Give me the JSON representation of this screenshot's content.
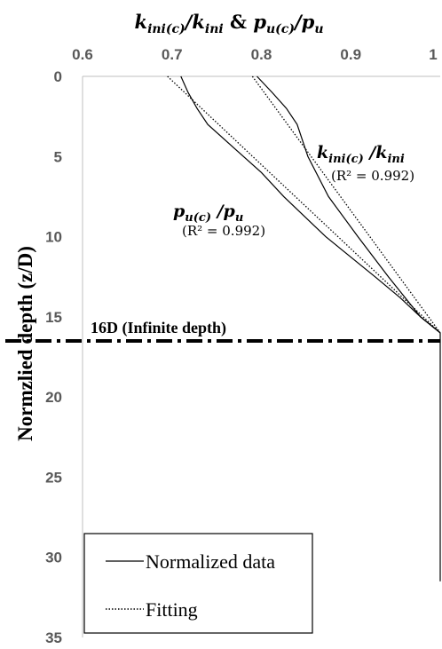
{
  "chart_data": {
    "type": "line",
    "title": "kini(c)/kini & pu(c)/pu",
    "ylabel": "Normzlied depth (z/D)",
    "xlim": [
      0.6,
      1.0
    ],
    "ylim": [
      0,
      35
    ],
    "x_axis_position": "top",
    "y_axis_inverted": true,
    "grid": false,
    "x_ticks": [
      "0.6",
      "0.7",
      "0.8",
      "0.9",
      "1"
    ],
    "y_ticks": [
      "0",
      "5",
      "10",
      "15",
      "20",
      "25",
      "30",
      "35"
    ],
    "series": [
      {
        "name": "Normalized data",
        "group": "kini(c)/kini",
        "style": "solid",
        "points": [
          [
            0.795,
            0
          ],
          [
            0.812,
            1
          ],
          [
            0.828,
            2
          ],
          [
            0.84,
            3
          ],
          [
            0.852,
            5
          ],
          [
            0.875,
            7.5
          ],
          [
            0.908,
            10
          ],
          [
            0.942,
            12.5
          ],
          [
            0.978,
            15
          ],
          [
            1.0,
            16
          ]
        ]
      },
      {
        "name": "Fitting",
        "group": "kini(c)/kini",
        "style": "dotted",
        "points": [
          [
            0.79,
            0
          ],
          [
            0.832,
            3.2
          ],
          [
            0.874,
            6.4
          ],
          [
            0.916,
            9.6
          ],
          [
            0.958,
            12.8
          ],
          [
            1.0,
            16
          ]
        ]
      },
      {
        "name": "Normalized data",
        "group": "pu(c)/pu",
        "style": "solid",
        "points": [
          [
            0.71,
            0
          ],
          [
            0.718,
            1
          ],
          [
            0.728,
            2
          ],
          [
            0.74,
            3
          ],
          [
            0.77,
            4.5
          ],
          [
            0.8,
            6
          ],
          [
            0.825,
            7.5
          ],
          [
            0.872,
            10
          ],
          [
            0.927,
            12.5
          ],
          [
            0.955,
            13.8
          ],
          [
            0.978,
            15
          ],
          [
            1.0,
            16
          ]
        ]
      },
      {
        "name": "Fitting",
        "group": "pu(c)/pu",
        "style": "dotted",
        "points": [
          [
            0.695,
            0
          ],
          [
            0.756,
            3.2
          ],
          [
            0.817,
            6.4
          ],
          [
            0.878,
            9.6
          ],
          [
            0.939,
            12.8
          ],
          [
            1.0,
            16
          ]
        ]
      },
      {
        "name": "Normalized data",
        "group": "both (beyond 16D)",
        "style": "solid",
        "points": [
          [
            1.0,
            16
          ],
          [
            1.0,
            31.5
          ]
        ]
      }
    ],
    "infinite_depth_line": {
      "y": 16.5,
      "label": "16D (Infinite depth)",
      "style": "dash-dot"
    },
    "annotations": [
      {
        "label": "kini(c) /kini",
        "r2": "(R² = 0.992)"
      },
      {
        "label": "pu(c) /pu",
        "r2": "(R² = 0.992)"
      }
    ],
    "legend": {
      "position": "bottom-left",
      "items": [
        {
          "label": "Normalized data",
          "style": "solid"
        },
        {
          "label": "Fitting",
          "style": "dotted"
        }
      ]
    }
  }
}
